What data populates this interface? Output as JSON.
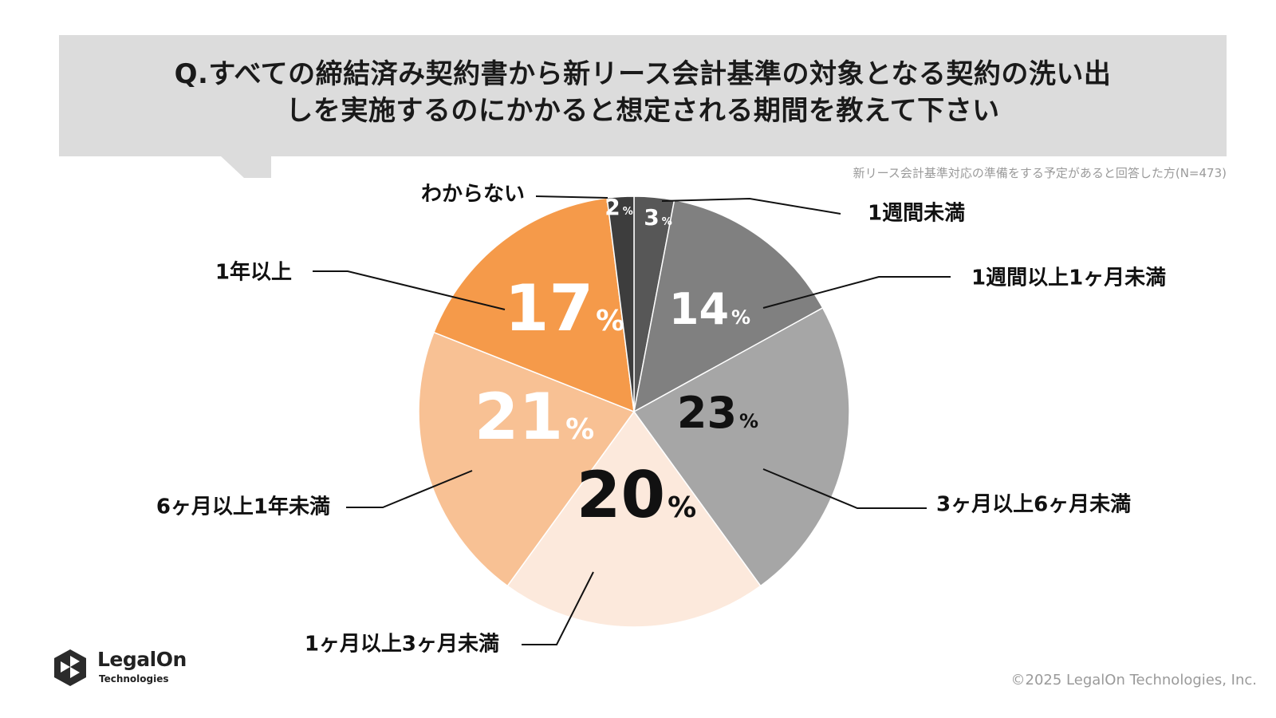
{
  "title": {
    "line1": "Q.すべての締結済み契約書から新リース会計基準の対象となる契約の洗い出",
    "line2": "しを実施するのにかかると想定される期間を教えて下さい"
  },
  "note": "新リース会計基準対応の準備をする予定があると回答した方(N=473)",
  "footer": {
    "copyright": "©2025 LegalOn Technologies, Inc.",
    "logo_name": "LegalOn",
    "logo_sub": "Technologies"
  },
  "colors": {
    "dark": "#3d3d3d",
    "gray_dark": "#575757",
    "gray_mid": "#808080",
    "gray_light": "#a6a6a6",
    "peach_light": "#fce9dc",
    "orange_light": "#f8c194",
    "orange": "#f59a4a",
    "title_bg": "#dcdcdc"
  },
  "chart_data": {
    "type": "pie",
    "unit": "%",
    "slices": [
      {
        "label": "1週間未満",
        "value": 3,
        "color": "#575757",
        "text_color": "#ffffff",
        "size": "small"
      },
      {
        "label": "1週間以上1ヶ月未満",
        "value": 14,
        "color": "#808080",
        "text_color": "#ffffff",
        "size": "medium"
      },
      {
        "label": "3ヶ月以上6ヶ月未満",
        "value": 23,
        "color": "#a6a6a6",
        "text_color": "#111111",
        "size": "medium"
      },
      {
        "label": "1ヶ月以上3ヶ月未満",
        "value": 20,
        "color": "#fce9dc",
        "text_color": "#111111",
        "size": "large"
      },
      {
        "label": "6ヶ月以上1年未満",
        "value": 21,
        "color": "#f8c194",
        "text_color": "#ffffff",
        "size": "large"
      },
      {
        "label": "1年以上",
        "value": 17,
        "color": "#f59a4a",
        "text_color": "#ffffff",
        "size": "large"
      },
      {
        "label": "わからない",
        "value": 2,
        "color": "#3d3d3d",
        "text_color": "#ffffff",
        "size": "small"
      }
    ]
  }
}
